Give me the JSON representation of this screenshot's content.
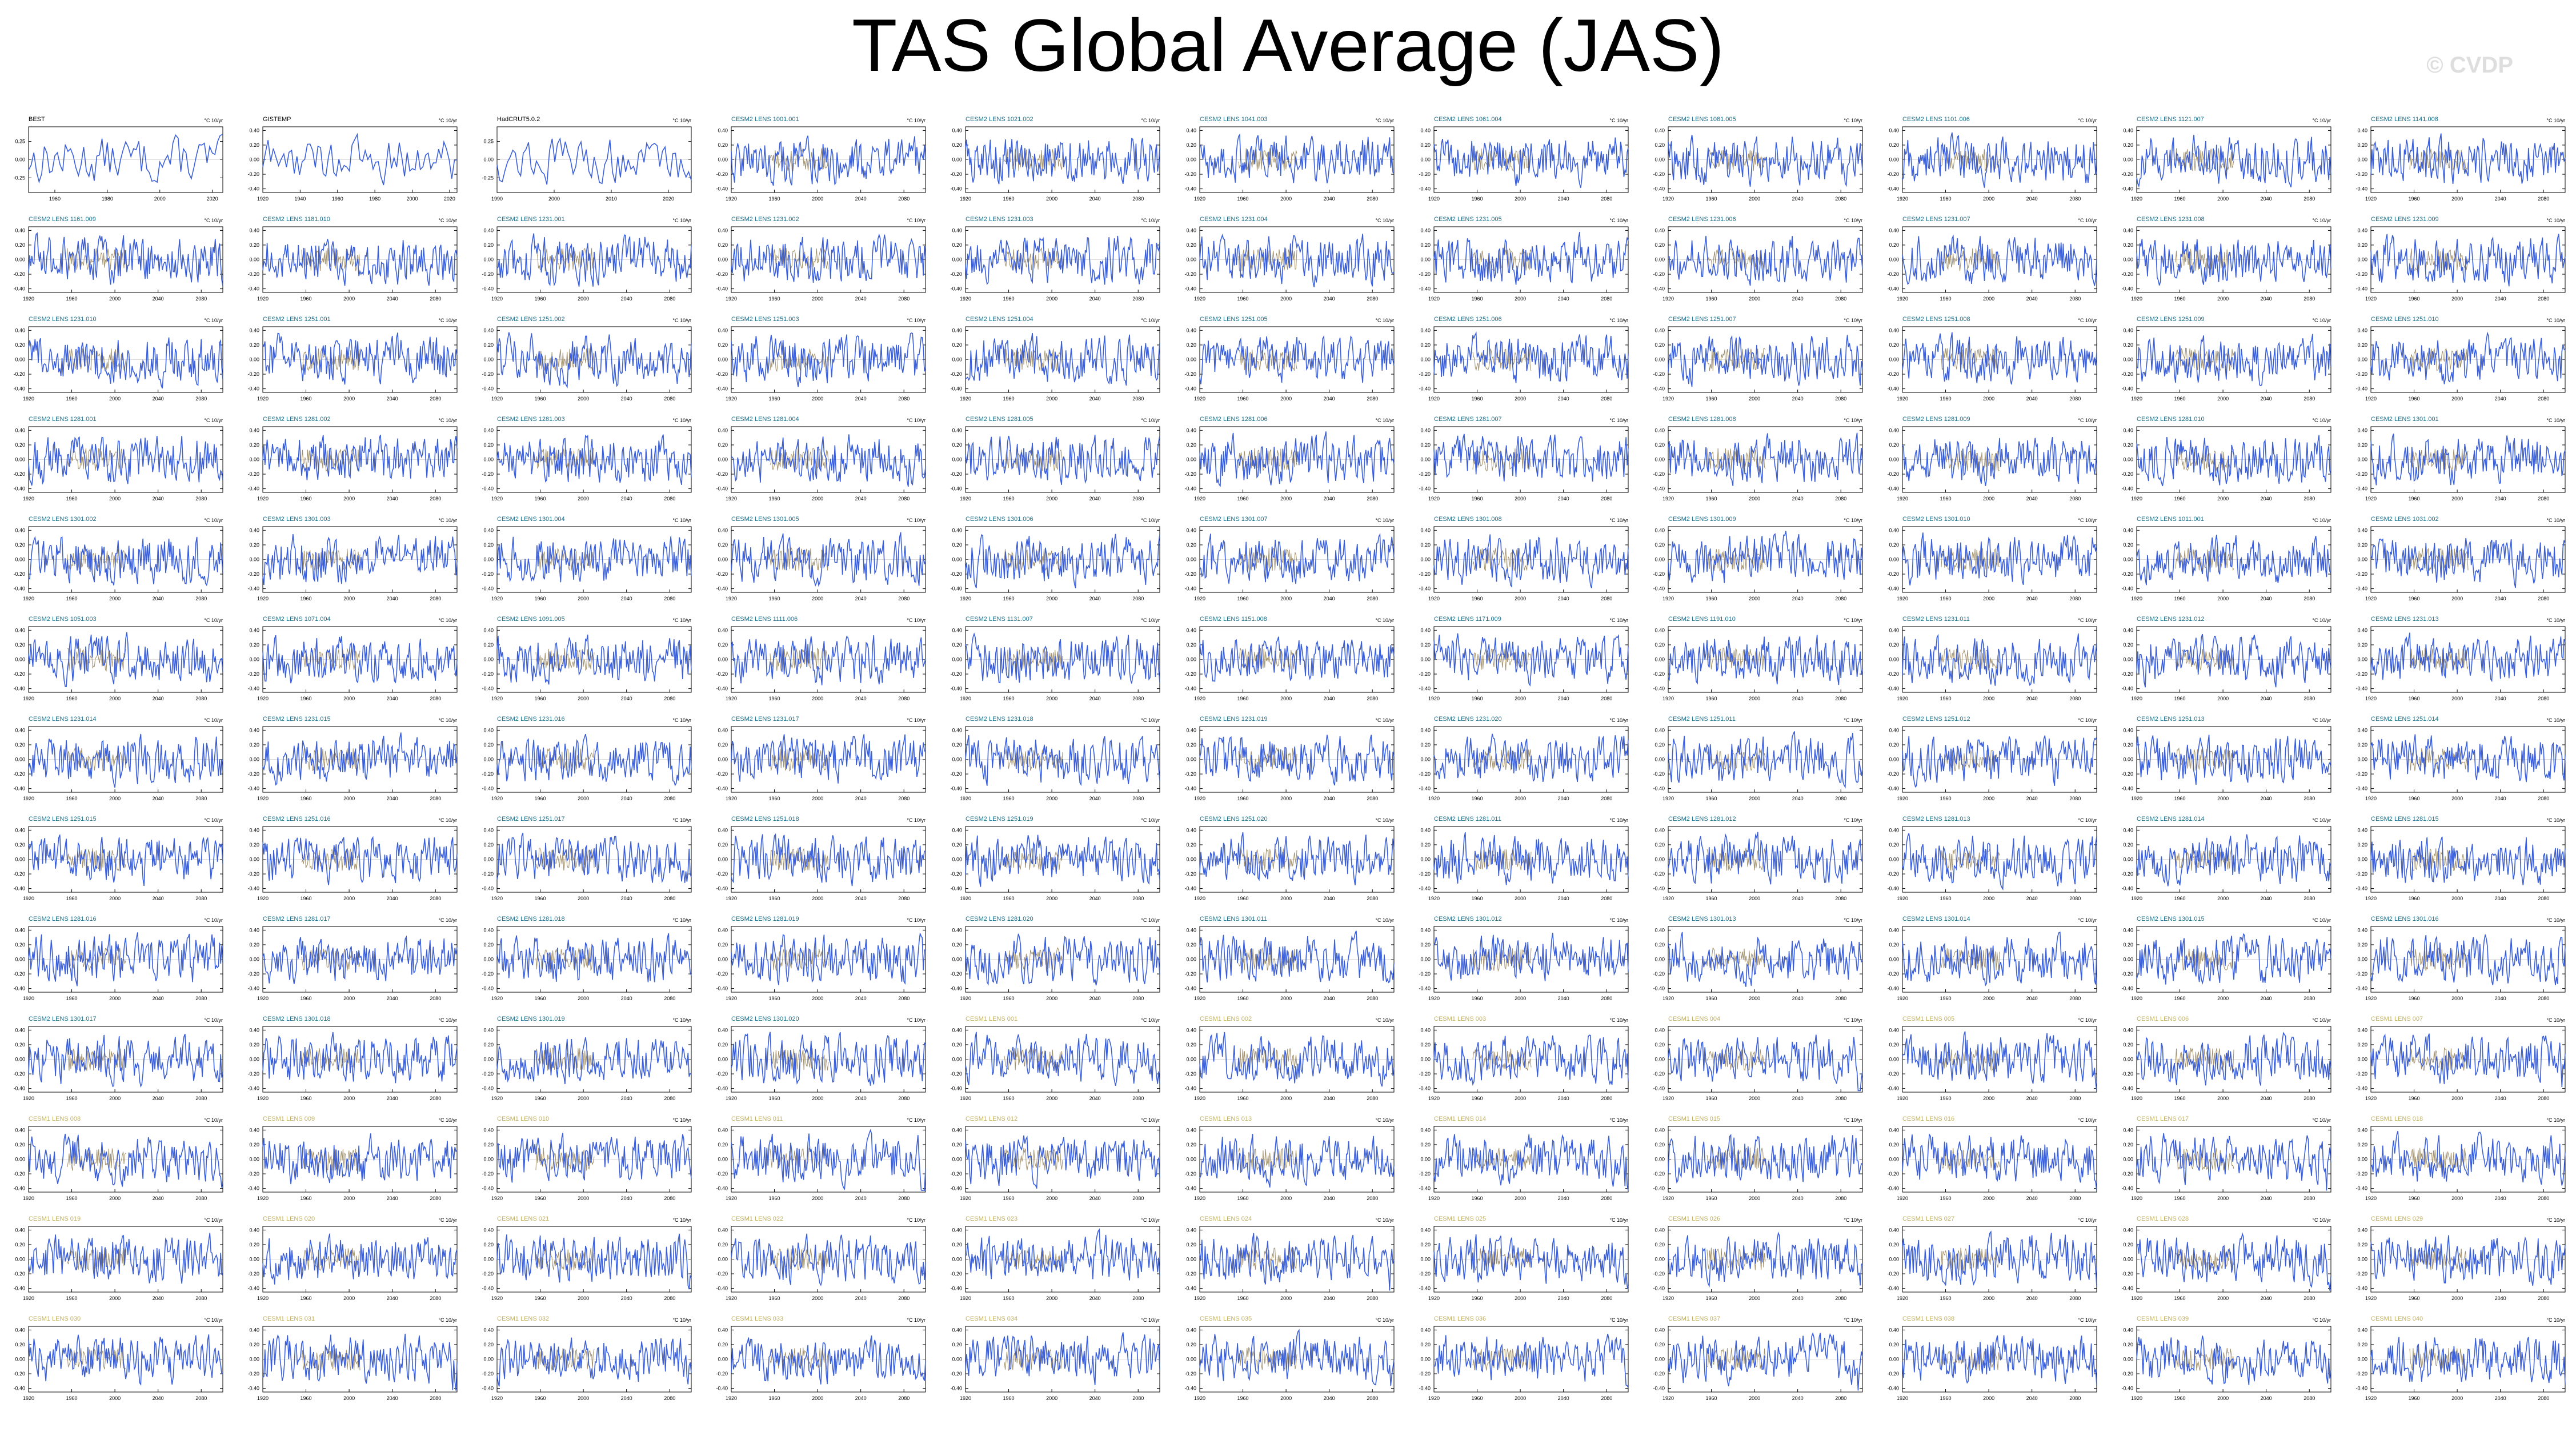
{
  "page": {
    "title": "TAS Global Average (JAS)",
    "watermark": "© CVDP"
  },
  "colors": {
    "main_series": "#3a5fd9",
    "obs_overlay": "#a08f6a",
    "title_obs": "#000000",
    "title_lens": "#1a6f8a",
    "title_cesm1": "#c0b060",
    "axis": "#000000"
  },
  "chart_data": {
    "type": "line",
    "title": "TAS Global Average (JAS)",
    "units": "°C 10/yr",
    "ylim": [
      -0.45,
      0.45
    ],
    "yticks": [
      -0.4,
      -0.2,
      0.0,
      0.2,
      0.4
    ],
    "ytick_labels": [
      "-0.40",
      "-0.20",
      "0.00",
      "0.20",
      "0.40"
    ],
    "xlim_model": [
      1920,
      2100
    ],
    "xticks_model": [
      "1920",
      "1960",
      "2000",
      "2040",
      "2080"
    ],
    "panels": [
      {
        "name": "BEST",
        "group": "obs",
        "xlim": [
          1950,
          2024
        ],
        "xticks": [
          "1960",
          "1980",
          "2000",
          "2020"
        ],
        "yticks": [
          "0.25",
          "0.00",
          "-0.25"
        ]
      },
      {
        "name": "GISTEMP",
        "group": "obs",
        "xlim": [
          1920,
          2024
        ],
        "xticks": [
          "1920",
          "1940",
          "1960",
          "1980",
          "2000",
          "2020"
        ],
        "yticks": [
          "0.40",
          "0.20",
          "0.00",
          "-0.20",
          "-0.40"
        ]
      },
      {
        "name": "HadCRUT5.0.2",
        "group": "obs",
        "xlim": [
          1990,
          2024
        ],
        "xticks": [
          "1990",
          "2000",
          "2010",
          "2020"
        ],
        "yticks": [
          "0.25",
          "0.00",
          "-0.25"
        ]
      },
      {
        "name": "CESM2 LENS 1001.001",
        "group": "lens"
      },
      {
        "name": "CESM2 LENS 1021.002",
        "group": "lens"
      },
      {
        "name": "CESM2 LENS 1041.003",
        "group": "lens"
      },
      {
        "name": "CESM2 LENS 1061.004",
        "group": "lens"
      },
      {
        "name": "CESM2 LENS 1081.005",
        "group": "lens"
      },
      {
        "name": "CESM2 LENS 1101.006",
        "group": "lens"
      },
      {
        "name": "CESM2 LENS 1121.007",
        "group": "lens"
      },
      {
        "name": "CESM2 LENS 1141.008",
        "group": "lens"
      },
      {
        "name": "CESM2 LENS 1161.009",
        "group": "lens"
      },
      {
        "name": "CESM2 LENS 1181.010",
        "group": "lens"
      },
      {
        "name": "CESM2 LENS 1231.001",
        "group": "lens"
      },
      {
        "name": "CESM2 LENS 1231.002",
        "group": "lens"
      },
      {
        "name": "CESM2 LENS 1231.003",
        "group": "lens"
      },
      {
        "name": "CESM2 LENS 1231.004",
        "group": "lens"
      },
      {
        "name": "CESM2 LENS 1231.005",
        "group": "lens"
      },
      {
        "name": "CESM2 LENS 1231.006",
        "group": "lens"
      },
      {
        "name": "CESM2 LENS 1231.007",
        "group": "lens"
      },
      {
        "name": "CESM2 LENS 1231.008",
        "group": "lens"
      },
      {
        "name": "CESM2 LENS 1231.009",
        "group": "lens"
      },
      {
        "name": "CESM2 LENS 1231.010",
        "group": "lens"
      },
      {
        "name": "CESM2 LENS 1251.001",
        "group": "lens"
      },
      {
        "name": "CESM2 LENS 1251.002",
        "group": "lens"
      },
      {
        "name": "CESM2 LENS 1251.003",
        "group": "lens"
      },
      {
        "name": "CESM2 LENS 1251.004",
        "group": "lens"
      },
      {
        "name": "CESM2 LENS 1251.005",
        "group": "lens"
      },
      {
        "name": "CESM2 LENS 1251.006",
        "group": "lens"
      },
      {
        "name": "CESM2 LENS 1251.007",
        "group": "lens"
      },
      {
        "name": "CESM2 LENS 1251.008",
        "group": "lens"
      },
      {
        "name": "CESM2 LENS 1251.009",
        "group": "lens"
      },
      {
        "name": "CESM2 LENS 1251.010",
        "group": "lens"
      },
      {
        "name": "CESM2 LENS 1281.001",
        "group": "lens"
      },
      {
        "name": "CESM2 LENS 1281.002",
        "group": "lens"
      },
      {
        "name": "CESM2 LENS 1281.003",
        "group": "lens"
      },
      {
        "name": "CESM2 LENS 1281.004",
        "group": "lens"
      },
      {
        "name": "CESM2 LENS 1281.005",
        "group": "lens"
      },
      {
        "name": "CESM2 LENS 1281.006",
        "group": "lens"
      },
      {
        "name": "CESM2 LENS 1281.007",
        "group": "lens"
      },
      {
        "name": "CESM2 LENS 1281.008",
        "group": "lens"
      },
      {
        "name": "CESM2 LENS 1281.009",
        "group": "lens"
      },
      {
        "name": "CESM2 LENS 1281.010",
        "group": "lens"
      },
      {
        "name": "CESM2 LENS 1301.001",
        "group": "lens"
      },
      {
        "name": "CESM2 LENS 1301.002",
        "group": "lens"
      },
      {
        "name": "CESM2 LENS 1301.003",
        "group": "lens"
      },
      {
        "name": "CESM2 LENS 1301.004",
        "group": "lens"
      },
      {
        "name": "CESM2 LENS 1301.005",
        "group": "lens"
      },
      {
        "name": "CESM2 LENS 1301.006",
        "group": "lens"
      },
      {
        "name": "CESM2 LENS 1301.007",
        "group": "lens"
      },
      {
        "name": "CESM2 LENS 1301.008",
        "group": "lens"
      },
      {
        "name": "CESM2 LENS 1301.009",
        "group": "lens"
      },
      {
        "name": "CESM2 LENS 1301.010",
        "group": "lens"
      },
      {
        "name": "CESM2 LENS 1011.001",
        "group": "lens"
      },
      {
        "name": "CESM2 LENS 1031.002",
        "group": "lens"
      },
      {
        "name": "CESM2 LENS 1051.003",
        "group": "lens"
      },
      {
        "name": "CESM2 LENS 1071.004",
        "group": "lens"
      },
      {
        "name": "CESM2 LENS 1091.005",
        "group": "lens"
      },
      {
        "name": "CESM2 LENS 1111.006",
        "group": "lens"
      },
      {
        "name": "CESM2 LENS 1131.007",
        "group": "lens"
      },
      {
        "name": "CESM2 LENS 1151.008",
        "group": "lens"
      },
      {
        "name": "CESM2 LENS 1171.009",
        "group": "lens"
      },
      {
        "name": "CESM2 LENS 1191.010",
        "group": "lens"
      },
      {
        "name": "CESM2 LENS 1231.011",
        "group": "lens"
      },
      {
        "name": "CESM2 LENS 1231.012",
        "group": "lens"
      },
      {
        "name": "CESM2 LENS 1231.013",
        "group": "lens"
      },
      {
        "name": "CESM2 LENS 1231.014",
        "group": "lens"
      },
      {
        "name": "CESM2 LENS 1231.015",
        "group": "lens"
      },
      {
        "name": "CESM2 LENS 1231.016",
        "group": "lens"
      },
      {
        "name": "CESM2 LENS 1231.017",
        "group": "lens"
      },
      {
        "name": "CESM2 LENS 1231.018",
        "group": "lens"
      },
      {
        "name": "CESM2 LENS 1231.019",
        "group": "lens"
      },
      {
        "name": "CESM2 LENS 1231.020",
        "group": "lens"
      },
      {
        "name": "CESM2 LENS 1251.011",
        "group": "lens"
      },
      {
        "name": "CESM2 LENS 1251.012",
        "group": "lens"
      },
      {
        "name": "CESM2 LENS 1251.013",
        "group": "lens"
      },
      {
        "name": "CESM2 LENS 1251.014",
        "group": "lens"
      },
      {
        "name": "CESM2 LENS 1251.015",
        "group": "lens"
      },
      {
        "name": "CESM2 LENS 1251.016",
        "group": "lens"
      },
      {
        "name": "CESM2 LENS 1251.017",
        "group": "lens"
      },
      {
        "name": "CESM2 LENS 1251.018",
        "group": "lens"
      },
      {
        "name": "CESM2 LENS 1251.019",
        "group": "lens"
      },
      {
        "name": "CESM2 LENS 1251.020",
        "group": "lens"
      },
      {
        "name": "CESM2 LENS 1281.011",
        "group": "lens"
      },
      {
        "name": "CESM2 LENS 1281.012",
        "group": "lens"
      },
      {
        "name": "CESM2 LENS 1281.013",
        "group": "lens"
      },
      {
        "name": "CESM2 LENS 1281.014",
        "group": "lens"
      },
      {
        "name": "CESM2 LENS 1281.015",
        "group": "lens"
      },
      {
        "name": "CESM2 LENS 1281.016",
        "group": "lens"
      },
      {
        "name": "CESM2 LENS 1281.017",
        "group": "lens"
      },
      {
        "name": "CESM2 LENS 1281.018",
        "group": "lens"
      },
      {
        "name": "CESM2 LENS 1281.019",
        "group": "lens"
      },
      {
        "name": "CESM2 LENS 1281.020",
        "group": "lens"
      },
      {
        "name": "CESM2 LENS 1301.011",
        "group": "lens"
      },
      {
        "name": "CESM2 LENS 1301.012",
        "group": "lens"
      },
      {
        "name": "CESM2 LENS 1301.013",
        "group": "lens"
      },
      {
        "name": "CESM2 LENS 1301.014",
        "group": "lens"
      },
      {
        "name": "CESM2 LENS 1301.015",
        "group": "lens"
      },
      {
        "name": "CESM2 LENS 1301.016",
        "group": "lens"
      },
      {
        "name": "CESM2 LENS 1301.017",
        "group": "lens"
      },
      {
        "name": "CESM2 LENS 1301.018",
        "group": "lens"
      },
      {
        "name": "CESM2 LENS 1301.019",
        "group": "lens"
      },
      {
        "name": "CESM2 LENS 1301.020",
        "group": "lens"
      },
      {
        "name": "CESM1 LENS 001",
        "group": "cesm1"
      },
      {
        "name": "CESM1 LENS 002",
        "group": "cesm1"
      },
      {
        "name": "CESM1 LENS 003",
        "group": "cesm1"
      },
      {
        "name": "CESM1 LENS 004",
        "group": "cesm1"
      },
      {
        "name": "CESM1 LENS 005",
        "group": "cesm1"
      },
      {
        "name": "CESM1 LENS 006",
        "group": "cesm1"
      },
      {
        "name": "CESM1 LENS 007",
        "group": "cesm1"
      },
      {
        "name": "CESM1 LENS 008",
        "group": "cesm1"
      },
      {
        "name": "CESM1 LENS 009",
        "group": "cesm1"
      },
      {
        "name": "CESM1 LENS 010",
        "group": "cesm1"
      },
      {
        "name": "CESM1 LENS 011",
        "group": "cesm1"
      },
      {
        "name": "CESM1 LENS 012",
        "group": "cesm1"
      },
      {
        "name": "CESM1 LENS 013",
        "group": "cesm1"
      },
      {
        "name": "CESM1 LENS 014",
        "group": "cesm1"
      },
      {
        "name": "CESM1 LENS 015",
        "group": "cesm1"
      },
      {
        "name": "CESM1 LENS 016",
        "group": "cesm1"
      },
      {
        "name": "CESM1 LENS 017",
        "group": "cesm1"
      },
      {
        "name": "CESM1 LENS 018",
        "group": "cesm1"
      },
      {
        "name": "CESM1 LENS 019",
        "group": "cesm1"
      },
      {
        "name": "CESM1 LENS 020",
        "group": "cesm1"
      },
      {
        "name": "CESM1 LENS 021",
        "group": "cesm1"
      },
      {
        "name": "CESM1 LENS 022",
        "group": "cesm1"
      },
      {
        "name": "CESM1 LENS 023",
        "group": "cesm1"
      },
      {
        "name": "CESM1 LENS 024",
        "group": "cesm1"
      },
      {
        "name": "CESM1 LENS 025",
        "group": "cesm1"
      },
      {
        "name": "CESM1 LENS 026",
        "group": "cesm1"
      },
      {
        "name": "CESM1 LENS 027",
        "group": "cesm1"
      },
      {
        "name": "CESM1 LENS 028",
        "group": "cesm1"
      },
      {
        "name": "CESM1 LENS 029",
        "group": "cesm1"
      },
      {
        "name": "CESM1 LENS 030",
        "group": "cesm1"
      },
      {
        "name": "CESM1 LENS 031",
        "group": "cesm1"
      },
      {
        "name": "CESM1 LENS 032",
        "group": "cesm1"
      },
      {
        "name": "CESM1 LENS 033",
        "group": "cesm1"
      },
      {
        "name": "CESM1 LENS 034",
        "group": "cesm1"
      },
      {
        "name": "CESM1 LENS 035",
        "group": "cesm1"
      },
      {
        "name": "CESM1 LENS 036",
        "group": "cesm1"
      },
      {
        "name": "CESM1 LENS 037",
        "group": "cesm1"
      },
      {
        "name": "CESM1 LENS 038",
        "group": "cesm1"
      },
      {
        "name": "CESM1 LENS 039",
        "group": "cesm1"
      },
      {
        "name": "CESM1 LENS 040",
        "group": "cesm1"
      }
    ]
  }
}
